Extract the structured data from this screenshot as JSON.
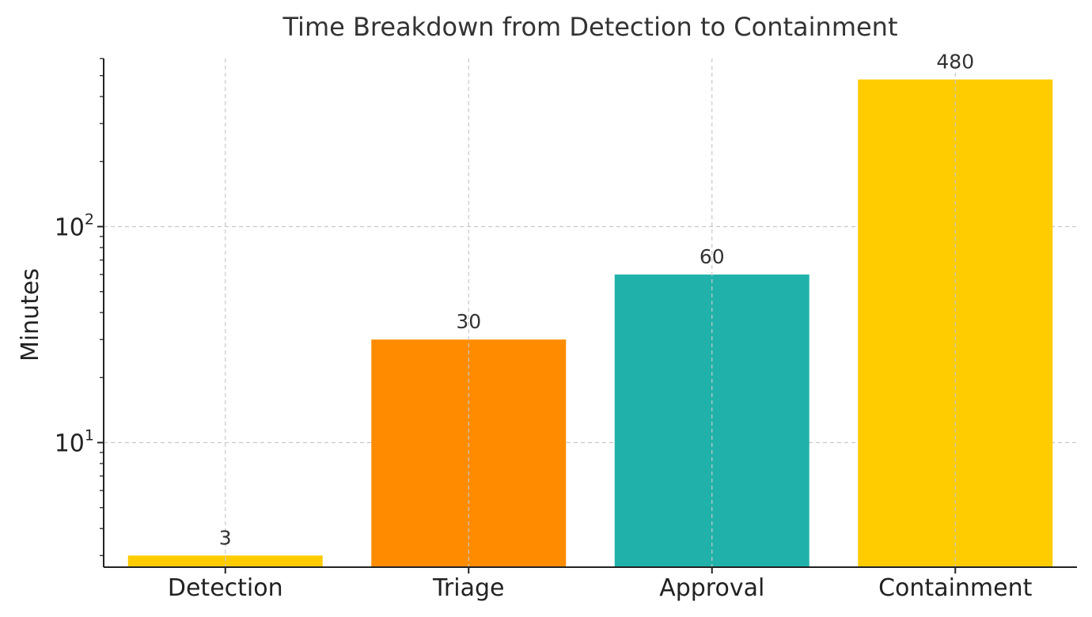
{
  "chart_data": {
    "type": "bar",
    "title": "Time Breakdown from Detection to Containment",
    "xlabel": "",
    "ylabel": "Minutes",
    "yscale": "log",
    "ylim": [
      2.65,
      600
    ],
    "grid": true,
    "categories": [
      "Detection",
      "Triage",
      "Approval",
      "Containment"
    ],
    "values": [
      3,
      30,
      60,
      480
    ],
    "data_labels": [
      "3",
      "30",
      "60",
      "480"
    ],
    "colors": [
      "#FFCC00",
      "#FF8C00",
      "#20B2AA",
      "#FFCC00"
    ],
    "y_major_ticks": [
      {
        "value": 10,
        "base": "10",
        "exp": "1"
      },
      {
        "value": 100,
        "base": "10",
        "exp": "2"
      }
    ]
  }
}
